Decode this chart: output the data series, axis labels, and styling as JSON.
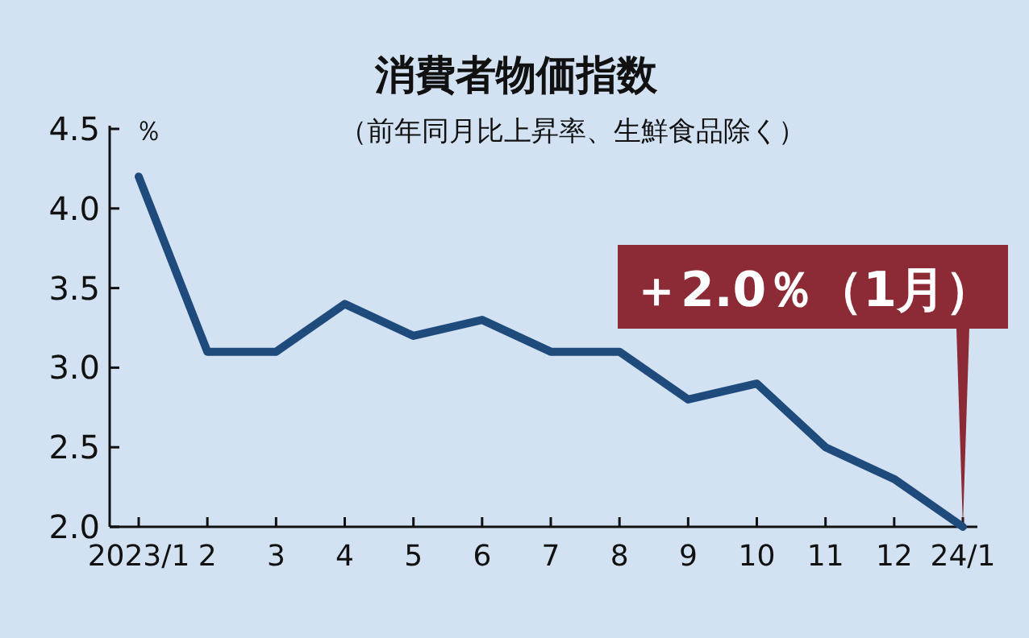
{
  "chart_data": {
    "type": "line",
    "title": "消費者物価指数",
    "subtitle": "（前年同月比上昇率、生鮮食品除く）",
    "ylabel": "％",
    "categories": [
      "2023/1",
      "2",
      "3",
      "4",
      "5",
      "6",
      "7",
      "8",
      "9",
      "10",
      "11",
      "12",
      "24/1"
    ],
    "values": [
      4.2,
      3.1,
      3.1,
      3.4,
      3.2,
      3.3,
      3.1,
      3.1,
      2.8,
      2.9,
      2.5,
      2.3,
      2.0
    ],
    "color": "#1f4a7c",
    "ylim": [
      2.0,
      4.5
    ],
    "yticks": [
      {
        "value": 2.0,
        "label": "2.0"
      },
      {
        "value": 2.5,
        "label": "2.5"
      },
      {
        "value": 3.0,
        "label": "3.0"
      },
      {
        "value": 3.5,
        "label": "3.5"
      },
      {
        "value": 4.0,
        "label": "4.0"
      },
      {
        "value": 4.5,
        "label": "4.5"
      }
    ],
    "annotations": [
      "＋2.0％（1月）"
    ],
    "grid": false,
    "marker": "none",
    "line_style": "solid"
  }
}
